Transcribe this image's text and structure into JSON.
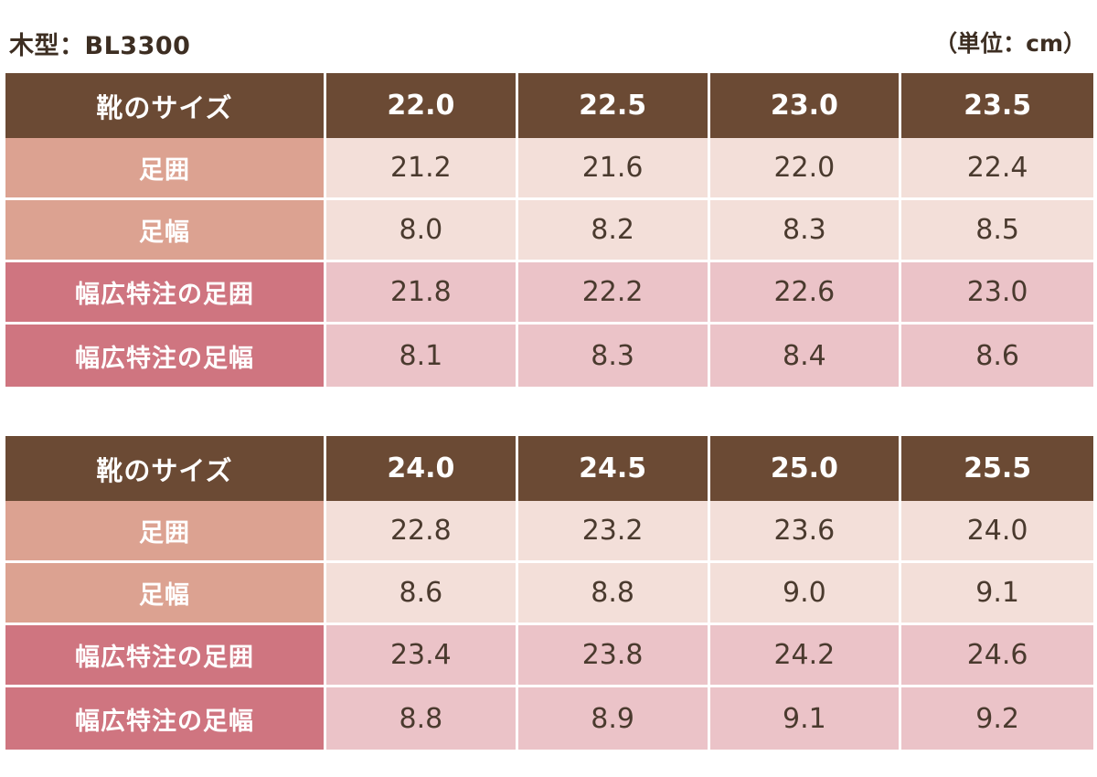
{
  "header": {
    "title": "木型：BL3300",
    "unit": "（単位：cm）"
  },
  "colors": {
    "header_bg": "#6b4a34",
    "normal_label_bg": "#dca291",
    "normal_cell_bg": "#f3dfd9",
    "wide_label_bg": "#cf7580",
    "wide_cell_bg": "#ebc3c8"
  },
  "tables": [
    {
      "header_label": "靴のサイズ",
      "sizes": [
        "22.0",
        "22.5",
        "23.0",
        "23.5"
      ],
      "rows": [
        {
          "label": "足囲",
          "values": [
            "21.2",
            "21.6",
            "22.0",
            "22.4"
          ]
        },
        {
          "label": "足幅",
          "values": [
            "8.0",
            "8.2",
            "8.3",
            "8.5"
          ]
        },
        {
          "label": "幅広特注の足囲",
          "values": [
            "21.8",
            "22.2",
            "22.6",
            "23.0"
          ]
        },
        {
          "label": "幅広特注の足幅",
          "values": [
            "8.1",
            "8.3",
            "8.4",
            "8.6"
          ]
        }
      ]
    },
    {
      "header_label": "靴のサイズ",
      "sizes": [
        "24.0",
        "24.5",
        "25.0",
        "25.5"
      ],
      "rows": [
        {
          "label": "足囲",
          "values": [
            "22.8",
            "23.2",
            "23.6",
            "24.0"
          ]
        },
        {
          "label": "足幅",
          "values": [
            "8.6",
            "8.8",
            "9.0",
            "9.1"
          ]
        },
        {
          "label": "幅広特注の足囲",
          "values": [
            "23.4",
            "23.8",
            "24.2",
            "24.6"
          ]
        },
        {
          "label": "幅広特注の足幅",
          "values": [
            "8.8",
            "8.9",
            "9.1",
            "9.2"
          ]
        }
      ]
    }
  ]
}
